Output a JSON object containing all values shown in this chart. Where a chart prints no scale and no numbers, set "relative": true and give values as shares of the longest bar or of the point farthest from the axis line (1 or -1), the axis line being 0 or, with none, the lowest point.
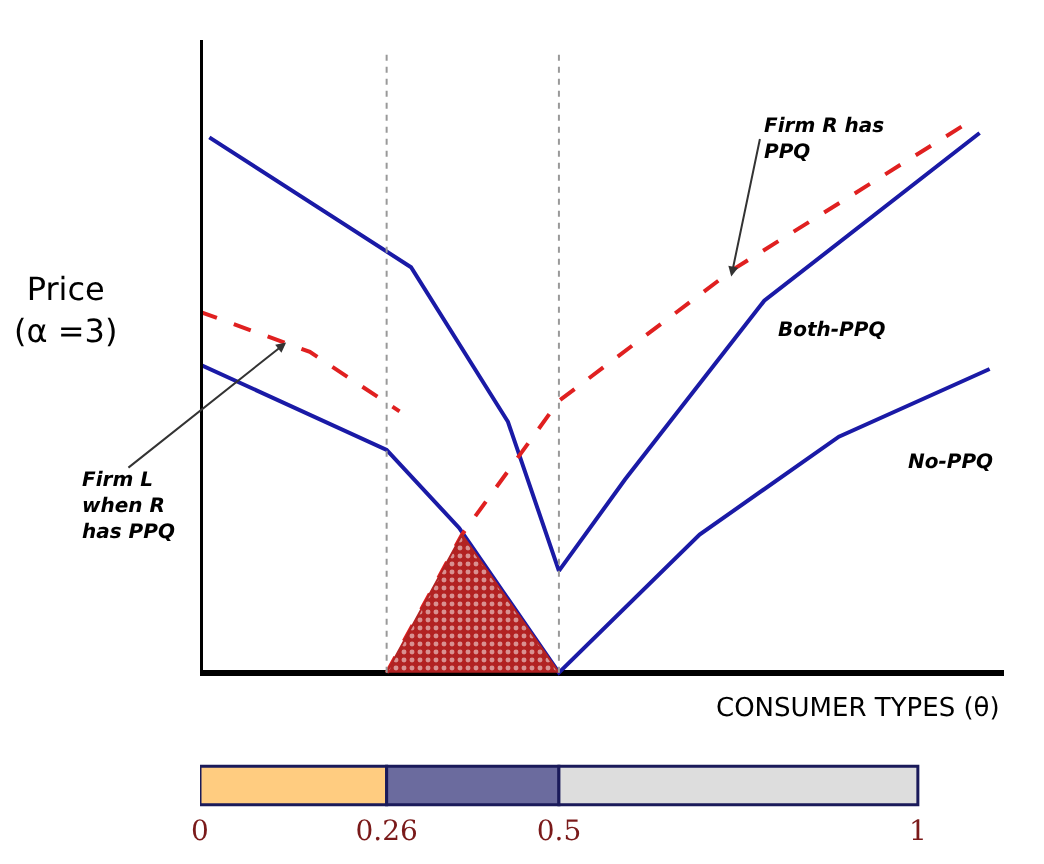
{
  "chart_data": {
    "type": "line",
    "relative": true,
    "ylabel": "Price\n(α =3)",
    "xlabel": "CONSUMER TYPES (θ)",
    "xlim": [
      0,
      1.12
    ],
    "xticks": [
      0,
      0.26,
      0.5,
      1
    ],
    "series": [
      {
        "name": "Both-PPQ",
        "color": "#1a1aa6",
        "line_style": "solid",
        "x": [
          0.013,
          0.294,
          0.429,
          0.5,
          0.592,
          0.786,
          1.086
        ],
        "values": [
          0.973,
          0.737,
          0.456,
          0.185,
          0.351,
          0.676,
          0.981
        ]
      },
      {
        "name": "No-PPQ",
        "color": "#1a1aa6",
        "line_style": "solid",
        "x": [
          0,
          0.26,
          0.361,
          0.5,
          0.696,
          0.89,
          1.1
        ],
        "values": [
          0.56,
          0.405,
          0.263,
          0,
          0.251,
          0.429,
          0.552
        ]
      },
      {
        "name": "Firm L\nwhen R\nhas PPQ",
        "color": "#e02020",
        "line_style": "dashed",
        "x": [
          0,
          0.153,
          0.278
        ],
        "values": [
          0.656,
          0.583,
          0.475
        ]
      },
      {
        "name": "Firm R has\nPPQ",
        "color": "#e02020",
        "line_style": "dashed",
        "x": [
          0.26,
          0.365,
          0.5,
          0.744,
          1.07
        ],
        "values": [
          0,
          0.251,
          0.494,
          0.734,
          1.0
        ]
      },
      {
        "type": "area",
        "color": "#b22222",
        "x": [
          0.26,
          0.365,
          0.5
        ],
        "values": [
          0,
          0.251,
          0
        ]
      }
    ],
    "ref_lines": [
      {
        "axis": "x",
        "value": 0.26,
        "color": "#999999",
        "line_style": "dotted"
      },
      {
        "axis": "x",
        "value": 0.5,
        "color": "#999999",
        "line_style": "dotted"
      }
    ],
    "legend": false
  }
}
